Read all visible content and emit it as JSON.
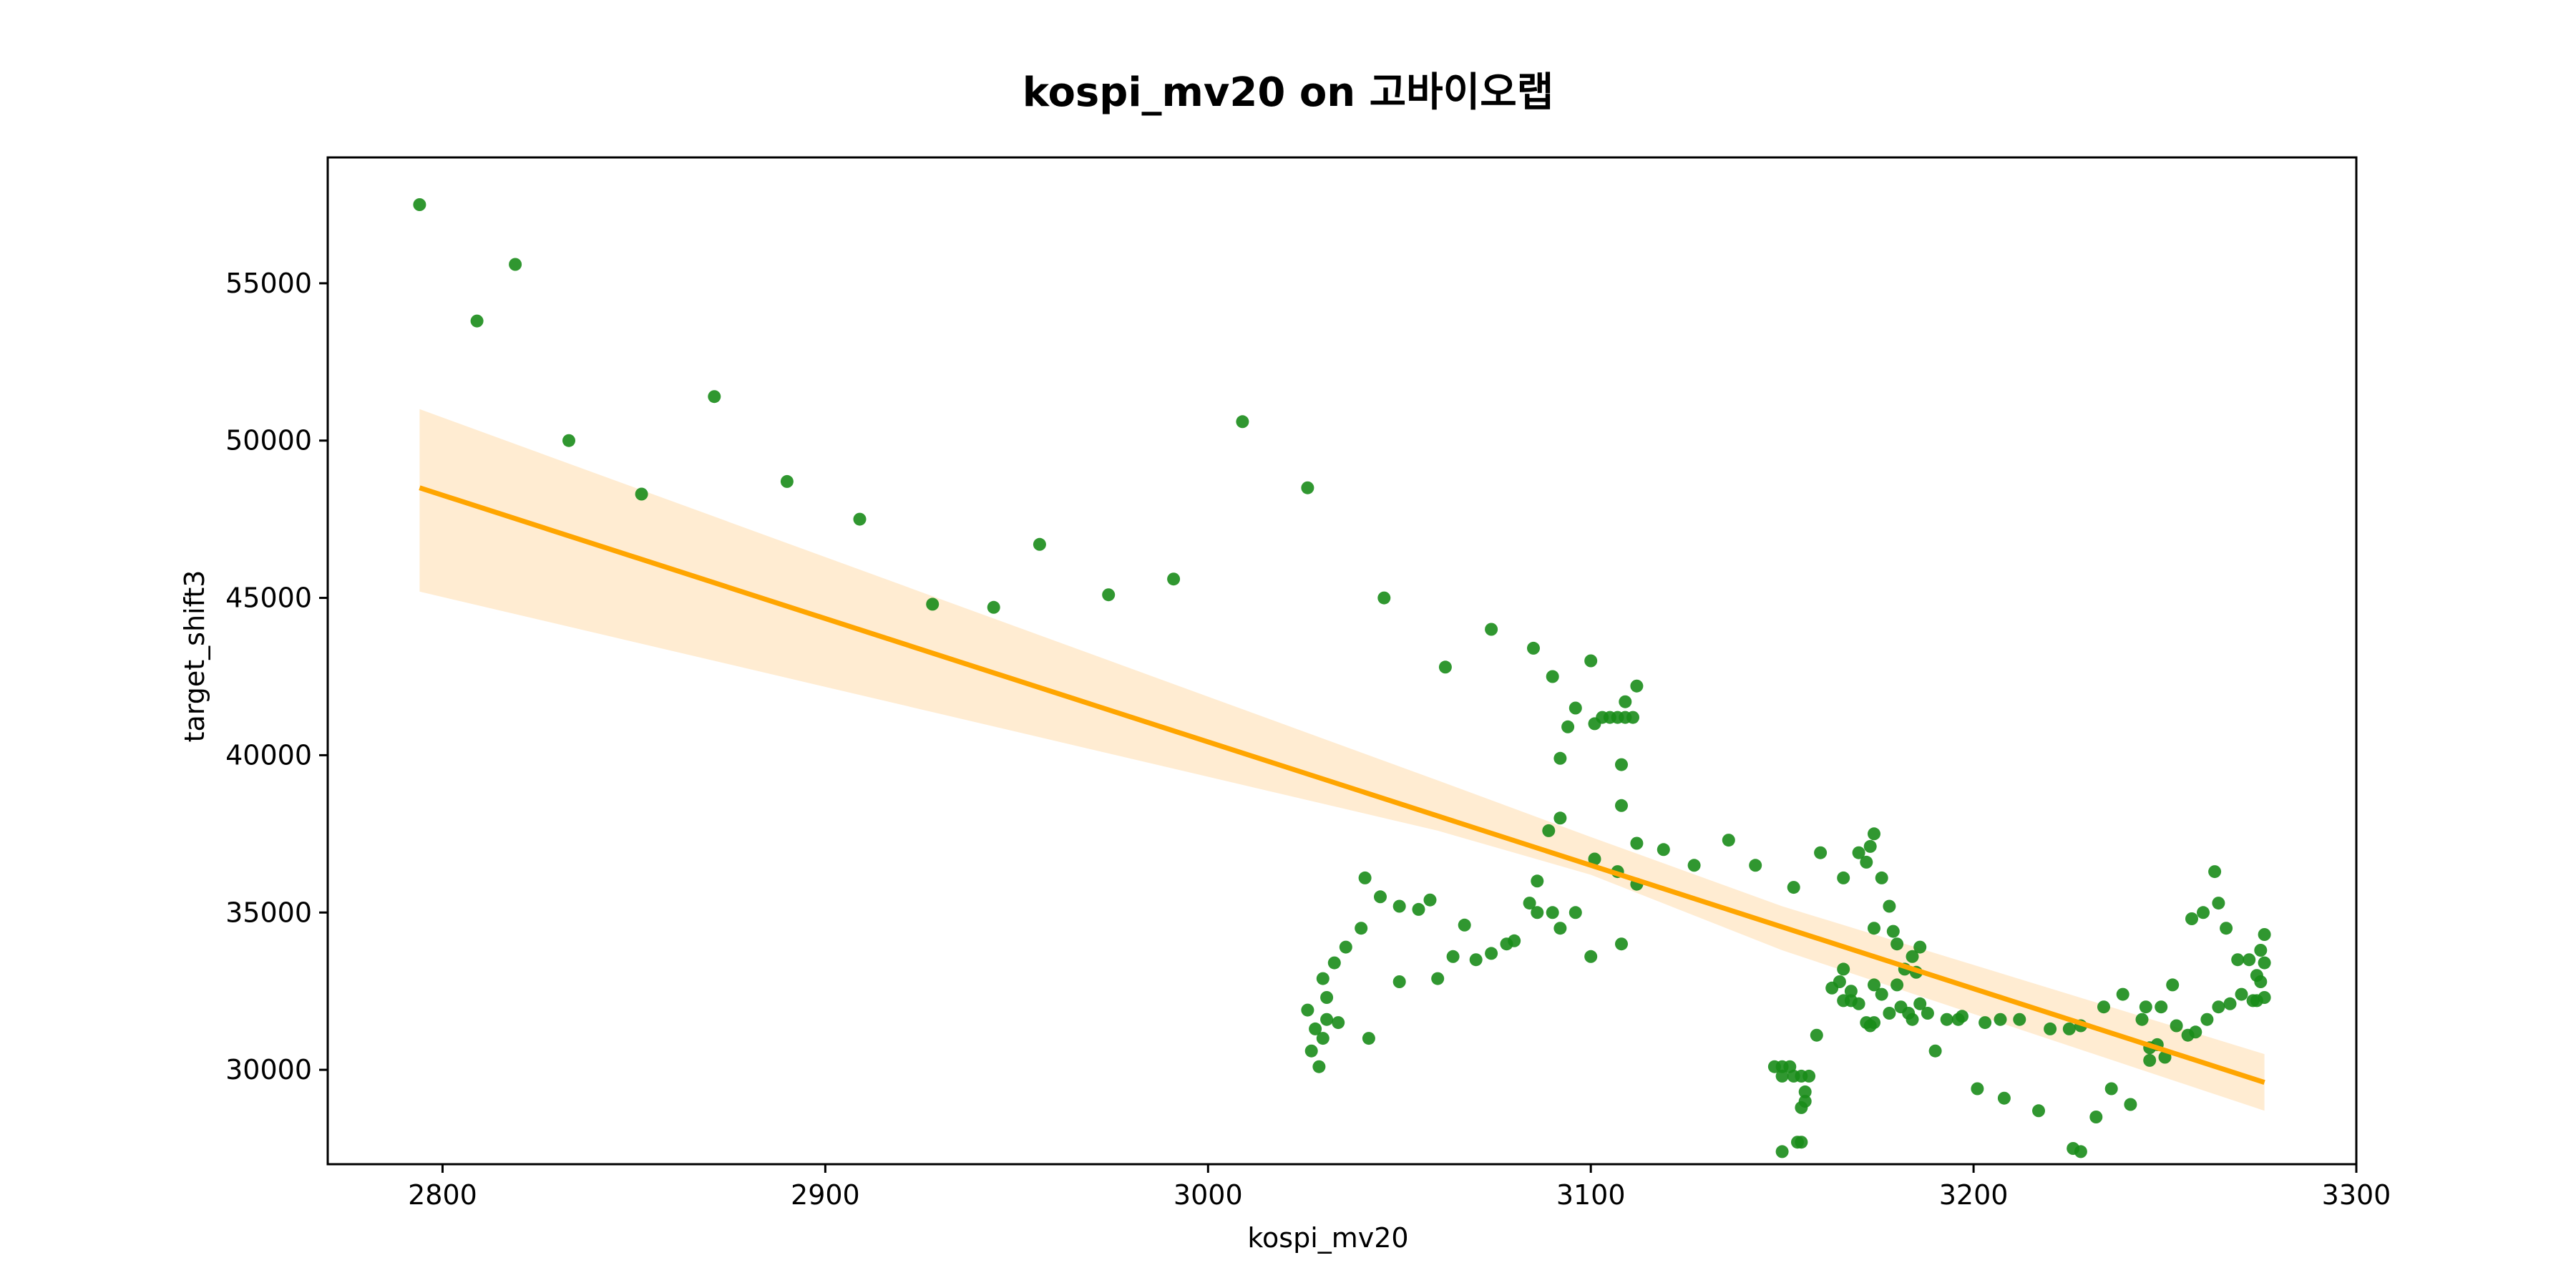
{
  "chart_data": {
    "type": "scatter",
    "title": "kospi_mv20 on 고바이오랩",
    "xlabel": "kospi_mv20",
    "ylabel": "target_shift3",
    "xlim": [
      2770,
      3300
    ],
    "ylim": [
      27000,
      59000
    ],
    "xticks": [
      2800,
      2900,
      3000,
      3100,
      3200,
      3300
    ],
    "yticks": [
      30000,
      35000,
      40000,
      45000,
      50000,
      55000
    ],
    "grid": false,
    "legend": "none",
    "colors": {
      "points": "#1a8c1a",
      "line": "#ffa500",
      "band": "#ffecd2",
      "axes": "#000000"
    },
    "points": [
      [
        2794,
        57500
      ],
      [
        2809,
        53800
      ],
      [
        2819,
        55600
      ],
      [
        2833,
        50000
      ],
      [
        2852,
        48300
      ],
      [
        2871,
        51400
      ],
      [
        2890,
        48700
      ],
      [
        2909,
        47500
      ],
      [
        2928,
        44800
      ],
      [
        2944,
        44700
      ],
      [
        2956,
        46700
      ],
      [
        2974,
        45100
      ],
      [
        2991,
        45600
      ],
      [
        3009,
        50600
      ],
      [
        3026,
        48500
      ],
      [
        3046,
        45000
      ],
      [
        3062,
        42800
      ],
      [
        3074,
        44000
      ],
      [
        3085,
        43400
      ],
      [
        3090,
        42500
      ],
      [
        3094,
        40900
      ],
      [
        3096,
        41500
      ],
      [
        3100,
        43000
      ],
      [
        3101,
        41000
      ],
      [
        3103,
        41200
      ],
      [
        3105,
        41200
      ],
      [
        3107,
        41200
      ],
      [
        3109,
        41200
      ],
      [
        3109,
        41700
      ],
      [
        3111,
        41200
      ],
      [
        3112,
        42200
      ],
      [
        3108,
        39700
      ],
      [
        3092,
        39900
      ],
      [
        3108,
        38400
      ],
      [
        3089,
        37600
      ],
      [
        3092,
        38000
      ],
      [
        3112,
        37200
      ],
      [
        3119,
        37000
      ],
      [
        3127,
        36500
      ],
      [
        3136,
        37300
      ],
      [
        3143,
        36500
      ],
      [
        3153,
        35800
      ],
      [
        3160,
        36900
      ],
      [
        3166,
        36100
      ],
      [
        3170,
        36900
      ],
      [
        3172,
        36600
      ],
      [
        3173,
        37100
      ],
      [
        3174,
        37500
      ],
      [
        3176,
        36100
      ],
      [
        3178,
        35200
      ],
      [
        3179,
        34400
      ],
      [
        3180,
        34000
      ],
      [
        3184,
        33600
      ],
      [
        3186,
        33900
      ],
      [
        3174,
        34500
      ],
      [
        3101,
        36700
      ],
      [
        3107,
        36300
      ],
      [
        3112,
        35900
      ],
      [
        3086,
        36000
      ],
      [
        3084,
        35300
      ],
      [
        3086,
        35000
      ],
      [
        3090,
        35000
      ],
      [
        3096,
        35000
      ],
      [
        3092,
        34500
      ],
      [
        3108,
        34000
      ],
      [
        3100,
        33600
      ],
      [
        3078,
        34000
      ],
      [
        3080,
        34100
      ],
      [
        3074,
        33700
      ],
      [
        3070,
        33500
      ],
      [
        3064,
        33600
      ],
      [
        3067,
        34600
      ],
      [
        3060,
        32900
      ],
      [
        3058,
        35400
      ],
      [
        3055,
        35100
      ],
      [
        3050,
        35200
      ],
      [
        3045,
        35500
      ],
      [
        3041,
        36100
      ],
      [
        3040,
        34500
      ],
      [
        3036,
        33900
      ],
      [
        3033,
        33400
      ],
      [
        3030,
        32900
      ],
      [
        3031,
        32300
      ],
      [
        3026,
        31900
      ],
      [
        3034,
        31500
      ],
      [
        3031,
        31600
      ],
      [
        3028,
        31300
      ],
      [
        3030,
        31000
      ],
      [
        3027,
        30600
      ],
      [
        3029,
        30100
      ],
      [
        3042,
        31000
      ],
      [
        3050,
        32800
      ],
      [
        3148,
        30100
      ],
      [
        3150,
        30100
      ],
      [
        3150,
        29800
      ],
      [
        3152,
        30100
      ],
      [
        3153,
        29800
      ],
      [
        3155,
        29800
      ],
      [
        3156,
        29300
      ],
      [
        3156,
        29000
      ],
      [
        3155,
        28800
      ],
      [
        3157,
        29800
      ],
      [
        3150,
        27400
      ],
      [
        3154,
        27700
      ],
      [
        3155,
        27700
      ],
      [
        3159,
        31100
      ],
      [
        3163,
        32600
      ],
      [
        3165,
        32800
      ],
      [
        3166,
        33200
      ],
      [
        3166,
        32200
      ],
      [
        3168,
        32500
      ],
      [
        3170,
        32100
      ],
      [
        3168,
        32200
      ],
      [
        3172,
        31500
      ],
      [
        3173,
        31400
      ],
      [
        3174,
        31500
      ],
      [
        3174,
        32700
      ],
      [
        3176,
        32400
      ],
      [
        3178,
        31800
      ],
      [
        3180,
        32700
      ],
      [
        3181,
        32000
      ],
      [
        3182,
        33200
      ],
      [
        3183,
        31800
      ],
      [
        3184,
        31600
      ],
      [
        3185,
        33100
      ],
      [
        3186,
        32100
      ],
      [
        3188,
        31800
      ],
      [
        3190,
        30600
      ],
      [
        3193,
        31600
      ],
      [
        3196,
        31600
      ],
      [
        3197,
        31700
      ],
      [
        3201,
        29400
      ],
      [
        3203,
        31500
      ],
      [
        3207,
        31600
      ],
      [
        3208,
        29100
      ],
      [
        3212,
        31600
      ],
      [
        3217,
        28700
      ],
      [
        3220,
        31300
      ],
      [
        3225,
        31300
      ],
      [
        3228,
        31400
      ],
      [
        3226,
        27500
      ],
      [
        3228,
        27400
      ],
      [
        3232,
        28500
      ],
      [
        3234,
        32000
      ],
      [
        3236,
        29400
      ],
      [
        3239,
        32400
      ],
      [
        3241,
        28900
      ],
      [
        3244,
        31600
      ],
      [
        3245,
        32000
      ],
      [
        3246,
        30300
      ],
      [
        3246,
        30700
      ],
      [
        3248,
        30800
      ],
      [
        3249,
        32000
      ],
      [
        3250,
        30400
      ],
      [
        3252,
        32700
      ],
      [
        3253,
        31400
      ],
      [
        3256,
        31100
      ],
      [
        3257,
        34800
      ],
      [
        3258,
        31200
      ],
      [
        3260,
        35000
      ],
      [
        3261,
        31600
      ],
      [
        3263,
        36300
      ],
      [
        3264,
        32000
      ],
      [
        3264,
        35300
      ],
      [
        3266,
        34500
      ],
      [
        3267,
        32100
      ],
      [
        3269,
        33500
      ],
      [
        3270,
        32400
      ],
      [
        3272,
        33500
      ],
      [
        3273,
        32200
      ],
      [
        3274,
        33000
      ],
      [
        3274,
        32200
      ],
      [
        3275,
        33800
      ],
      [
        3275,
        32800
      ],
      [
        3276,
        34300
      ],
      [
        3276,
        33400
      ],
      [
        3276,
        32300
      ]
    ],
    "regression": {
      "x_start": 2794,
      "x_end": 3276,
      "y_start": 48500,
      "y_end": 29600
    },
    "confidence_band": {
      "x": [
        2794,
        3060,
        3100,
        3150,
        3276
      ],
      "upper": [
        51000,
        39200,
        37400,
        35200,
        30500
      ],
      "lower": [
        45200,
        37600,
        36200,
        33800,
        28700
      ]
    }
  }
}
